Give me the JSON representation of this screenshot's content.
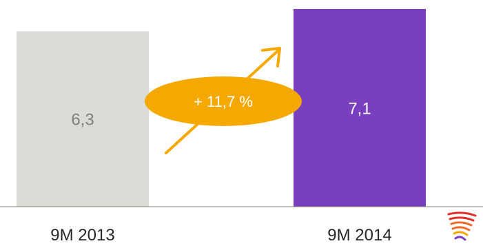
{
  "chart_data": {
    "type": "bar",
    "categories": [
      "9M 2013",
      "9M 2014"
    ],
    "values": [
      6.3,
      7.1
    ],
    "value_labels": [
      "6,3",
      "7,1"
    ],
    "ylim": [
      0,
      7.1
    ],
    "title": "",
    "xlabel": "",
    "ylabel": "",
    "grid": false,
    "legend": "none",
    "annotation": {
      "text": "+ 11,7 %",
      "shape": "ellipse",
      "arrow": "up-right"
    }
  },
  "colors": {
    "bars": [
      "#dcdcd6",
      "#7a3fbf"
    ],
    "value_labels": [
      "#7f7f7f",
      "#ffffff"
    ],
    "category_labels": "#262626",
    "axis": "#7f7f7f",
    "annotation_fill": "#f5a800",
    "annotation_text": "#ffffff",
    "logo": [
      "#e0302a",
      "#ee6a2a",
      "#f5a800",
      "#7a3fbf"
    ]
  },
  "icons": {
    "logo": "striped-wing-logo"
  }
}
